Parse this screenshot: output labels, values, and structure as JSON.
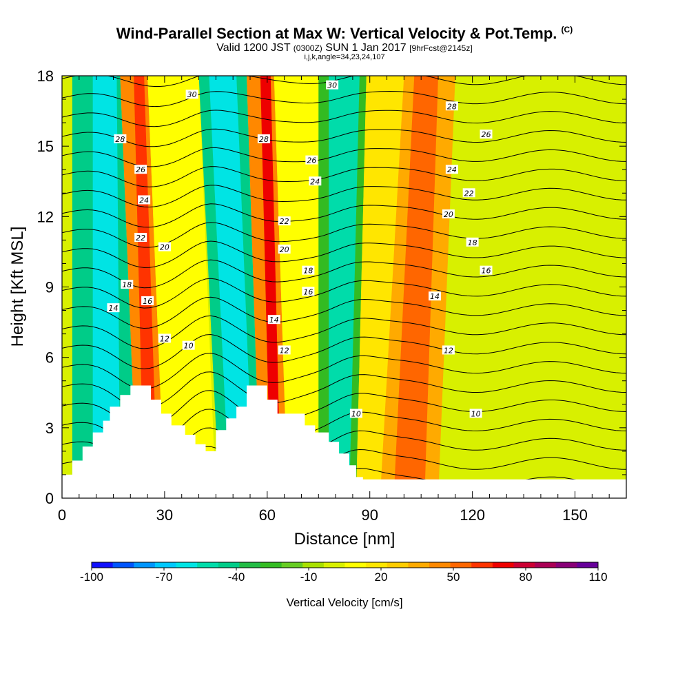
{
  "title": {
    "main": "Wind-Parallel Section at Max W: Vertical Velocity & Pot.Temp.",
    "main_tag": "(C)",
    "sub_a": "Valid 1200 JST",
    "sub_b": "(0300Z)",
    "sub_c": "SUN 1 Jan 2017",
    "sub_d": "[9hrFcst@2145z]",
    "sub2": "i,j,k,angle=34,23,24,107"
  },
  "chart_data": {
    "type": "heatmap",
    "xlabel": "Distance [nm]",
    "ylabel": "Height [Kft MSL]",
    "xlim": [
      0,
      165
    ],
    "ylim": [
      0,
      18
    ],
    "x_ticks": [
      0,
      30,
      60,
      90,
      120,
      150
    ],
    "y_ticks": [
      0,
      3,
      6,
      9,
      12,
      15,
      18
    ],
    "field": "Vertical Velocity",
    "contour_field": "Potential Temperature (C)",
    "terrain_heights_kft": [
      [
        0,
        1.0
      ],
      [
        3,
        1.0
      ],
      [
        3,
        1.6
      ],
      [
        6,
        1.6
      ],
      [
        6,
        2.2
      ],
      [
        9,
        2.2
      ],
      [
        9,
        2.8
      ],
      [
        12,
        2.8
      ],
      [
        12,
        3.3
      ],
      [
        14,
        3.3
      ],
      [
        14,
        3.9
      ],
      [
        17,
        3.9
      ],
      [
        17,
        4.4
      ],
      [
        20,
        4.4
      ],
      [
        20,
        4.8
      ],
      [
        26,
        4.8
      ],
      [
        26,
        4.2
      ],
      [
        29,
        4.2
      ],
      [
        29,
        3.6
      ],
      [
        32,
        3.6
      ],
      [
        32,
        3.1
      ],
      [
        36,
        3.1
      ],
      [
        36,
        2.7
      ],
      [
        39,
        2.7
      ],
      [
        39,
        2.3
      ],
      [
        42,
        2.3
      ],
      [
        42,
        2.0
      ],
      [
        45,
        2.0
      ],
      [
        45,
        2.9
      ],
      [
        48,
        2.9
      ],
      [
        48,
        3.4
      ],
      [
        51,
        3.4
      ],
      [
        51,
        3.9
      ],
      [
        54,
        3.9
      ],
      [
        54,
        4.8
      ],
      [
        60,
        4.8
      ],
      [
        60,
        4.2
      ],
      [
        63,
        4.2
      ],
      [
        63,
        3.6
      ],
      [
        71,
        3.6
      ],
      [
        71,
        3.1
      ],
      [
        74,
        3.1
      ],
      [
        74,
        2.8
      ],
      [
        78,
        2.8
      ],
      [
        78,
        2.4
      ],
      [
        81,
        2.4
      ],
      [
        81,
        1.9
      ],
      [
        84,
        1.9
      ],
      [
        84,
        1.4
      ],
      [
        86,
        1.4
      ],
      [
        86,
        0.9
      ],
      [
        88,
        0.9
      ],
      [
        88,
        0.8
      ],
      [
        165,
        0.8
      ]
    ],
    "w_bands": [
      {
        "x0": 3,
        "x1": 22,
        "x0top": 3,
        "x1top": 17,
        "w": -40
      },
      {
        "x0": 9,
        "x1": 17,
        "x0top": 9,
        "x1top": 16,
        "w": -60
      },
      {
        "x0": 22,
        "x1": 30,
        "x0top": 17,
        "x1top": 25,
        "w": 40
      },
      {
        "x0": 24,
        "x1": 28,
        "x0top": 21,
        "x1top": 24,
        "w": 60
      },
      {
        "x0": 30,
        "x1": 45,
        "x0top": 25,
        "x1top": 40,
        "w": 10
      },
      {
        "x0": 46,
        "x1": 58,
        "x0top": 40,
        "x1top": 54,
        "w": -40
      },
      {
        "x0": 49,
        "x1": 56,
        "x0top": 43,
        "x1top": 51,
        "w": -60
      },
      {
        "x0": 58,
        "x1": 66,
        "x0top": 54,
        "x1top": 62,
        "w": 40
      },
      {
        "x0": 61,
        "x1": 64,
        "x0top": 58,
        "x1top": 61,
        "w": 70
      },
      {
        "x0": 66,
        "x1": 80,
        "x0top": 62,
        "x1top": 75,
        "w": 10
      },
      {
        "x0": 75,
        "x1": 86,
        "x0top": 75,
        "x1top": 89,
        "w": -30
      },
      {
        "x0": 78,
        "x1": 84,
        "x0top": 78,
        "x1top": 87,
        "w": -50
      },
      {
        "x0": 86,
        "x1": 94,
        "x0top": 89,
        "x1top": 102,
        "w": 15
      },
      {
        "x0": 93,
        "x1": 110,
        "x0top": 100,
        "x1top": 115,
        "w": 35
      },
      {
        "x0": 97,
        "x1": 106,
        "x0top": 103,
        "x1top": 110,
        "w": 50
      }
    ],
    "theta_contour_labels": [
      {
        "x": 17,
        "y": 15.3,
        "label": "28"
      },
      {
        "x": 38,
        "y": 17.2,
        "label": "30"
      },
      {
        "x": 23,
        "y": 14.0,
        "label": "26"
      },
      {
        "x": 24,
        "y": 12.7,
        "label": "24"
      },
      {
        "x": 23,
        "y": 11.1,
        "label": "22"
      },
      {
        "x": 30,
        "y": 10.7,
        "label": "20"
      },
      {
        "x": 19,
        "y": 9.1,
        "label": "18"
      },
      {
        "x": 25,
        "y": 8.4,
        "label": "16"
      },
      {
        "x": 15,
        "y": 8.1,
        "label": "14"
      },
      {
        "x": 30,
        "y": 6.8,
        "label": "12"
      },
      {
        "x": 37,
        "y": 6.5,
        "label": "10"
      },
      {
        "x": 59,
        "y": 15.3,
        "label": "28"
      },
      {
        "x": 73,
        "y": 14.4,
        "label": "26"
      },
      {
        "x": 74,
        "y": 13.5,
        "label": "24"
      },
      {
        "x": 65,
        "y": 11.8,
        "label": "22"
      },
      {
        "x": 65,
        "y": 10.6,
        "label": "20"
      },
      {
        "x": 72,
        "y": 9.7,
        "label": "18"
      },
      {
        "x": 72,
        "y": 8.8,
        "label": "16"
      },
      {
        "x": 62,
        "y": 7.6,
        "label": "14"
      },
      {
        "x": 65,
        "y": 6.3,
        "label": "12"
      },
      {
        "x": 86,
        "y": 3.6,
        "label": "10"
      },
      {
        "x": 79,
        "y": 17.6,
        "label": "30"
      },
      {
        "x": 114,
        "y": 16.7,
        "label": "28"
      },
      {
        "x": 124,
        "y": 15.5,
        "label": "26"
      },
      {
        "x": 114,
        "y": 14.0,
        "label": "24"
      },
      {
        "x": 119,
        "y": 13.0,
        "label": "22"
      },
      {
        "x": 113,
        "y": 12.1,
        "label": "20"
      },
      {
        "x": 120,
        "y": 10.9,
        "label": "18"
      },
      {
        "x": 124,
        "y": 9.7,
        "label": "16"
      },
      {
        "x": 109,
        "y": 8.6,
        "label": "14"
      },
      {
        "x": 113,
        "y": 6.3,
        "label": "12"
      },
      {
        "x": 121,
        "y": 3.6,
        "label": "10"
      }
    ]
  },
  "colorbar": {
    "title": "Vertical Velocity [cm/s]",
    "tick_labels": [
      "-100",
      "-70",
      "-40",
      "-10",
      "20",
      "50",
      "80",
      "110"
    ],
    "colors": [
      "#1010ff",
      "#0055ff",
      "#0095ff",
      "#00c8ff",
      "#00e4e4",
      "#00dcaa",
      "#00cc88",
      "#22bb44",
      "#33bb22",
      "#66cc22",
      "#a8e000",
      "#d8f000",
      "#ffff00",
      "#ffe600",
      "#ffcc00",
      "#ffaa00",
      "#ff8800",
      "#ff6600",
      "#ff3300",
      "#ee0000",
      "#cc0033",
      "#aa0055",
      "#880077",
      "#660099"
    ]
  }
}
